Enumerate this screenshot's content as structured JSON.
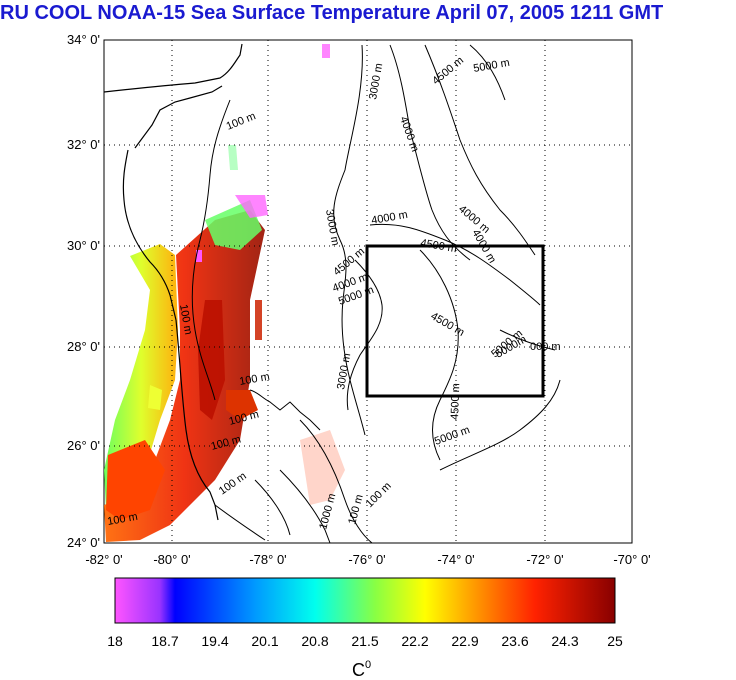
{
  "title": "RU COOL  NOAA-15 Sea Surface Temperature April 07, 2005 1211 GMT",
  "lat_ticks": [
    "34° 0'",
    "32° 0'",
    "30° 0'",
    "28° 0'",
    "26° 0'",
    "24° 0'"
  ],
  "lon_ticks": [
    "-82° 0'",
    "-80° 0'",
    "-78° 0'",
    "-76° 0'",
    "-74° 0'",
    "-72° 0'",
    "-70° 0'"
  ],
  "contour_labels": [
    {
      "text": "100 m",
      "id": "c100-north"
    },
    {
      "text": "3000 m",
      "id": "c3000-a"
    },
    {
      "text": "4500 m",
      "id": "c4500-a"
    },
    {
      "text": "5000 m",
      "id": "c5000-a"
    },
    {
      "text": "4000 m",
      "id": "c4000-a"
    },
    {
      "text": "3000 m",
      "id": "c3000-b"
    },
    {
      "text": "4000 m",
      "id": "c4000-b"
    },
    {
      "text": "4000 m",
      "id": "c4000-c"
    },
    {
      "text": "4500 m",
      "id": "c4500-b"
    },
    {
      "text": "4000 m",
      "id": "c4000-d"
    },
    {
      "text": "4500 m",
      "id": "c4500-c"
    },
    {
      "text": "4000 m",
      "id": "c4000-e"
    },
    {
      "text": "5000 m",
      "id": "c5000-b"
    },
    {
      "text": "4500 m",
      "id": "c4500-d"
    },
    {
      "text": "5000 m",
      "id": "c5000-c"
    },
    {
      "text": "3000 m",
      "id": "c3000-c"
    },
    {
      "text": "5000m",
      "id": "c5000-d"
    },
    {
      "text": "000 m",
      "id": "c000-e"
    },
    {
      "text": "4500 m",
      "id": "c4500-e"
    },
    {
      "text": "5000 m",
      "id": "c5000-e"
    },
    {
      "text": "100 m",
      "id": "c100-b"
    },
    {
      "text": "100 m",
      "id": "c100-c"
    },
    {
      "text": "100 m",
      "id": "c100-d"
    },
    {
      "text": "100 m",
      "id": "c100-e"
    },
    {
      "text": "100 m",
      "id": "c100-f"
    },
    {
      "text": "100 m",
      "id": "c100-g"
    },
    {
      "text": "1000 m",
      "id": "c1000-a"
    },
    {
      "text": "100 m",
      "id": "c100-h"
    },
    {
      "text": "100 m",
      "id": "c100-i"
    }
  ],
  "colorbar": {
    "ticks": [
      "18",
      "18.7",
      "19.4",
      "20.1",
      "20.8",
      "21.5",
      "22.2",
      "22.9",
      "23.6",
      "24.3",
      "25"
    ],
    "unit": "C",
    "unit_sup": "0"
  }
}
